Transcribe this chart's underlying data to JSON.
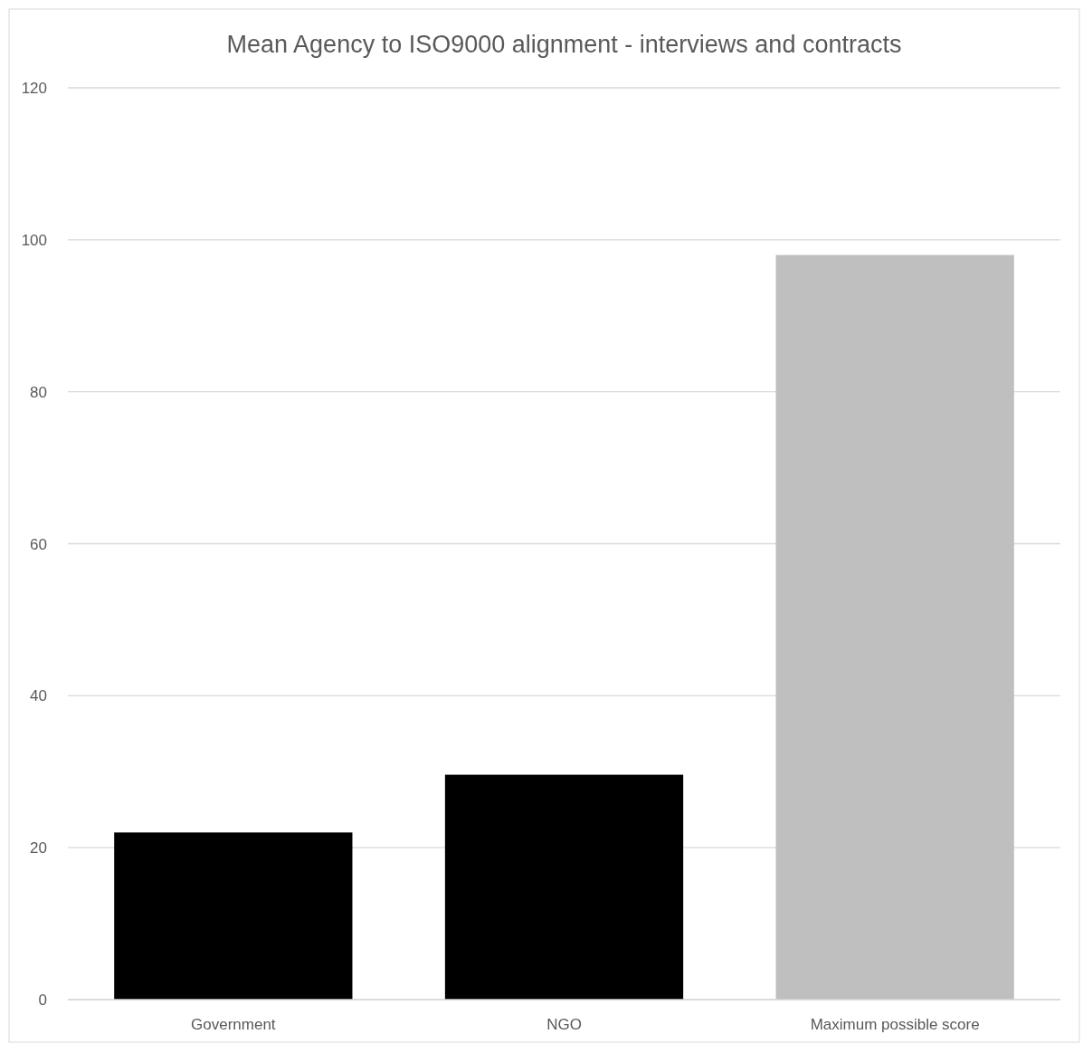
{
  "chart_data": {
    "type": "bar",
    "title": "Mean Agency to ISO9000 alignment - interviews and contracts",
    "categories": [
      "Government",
      "NGO",
      "Maximum possible score"
    ],
    "values": [
      22,
      29.6,
      98
    ],
    "colors": [
      "#000000",
      "#000000",
      "#bfbfbf"
    ],
    "ylim": [
      0,
      120
    ],
    "yticks": [
      0,
      20,
      40,
      60,
      80,
      100,
      120
    ],
    "grid": "y"
  }
}
